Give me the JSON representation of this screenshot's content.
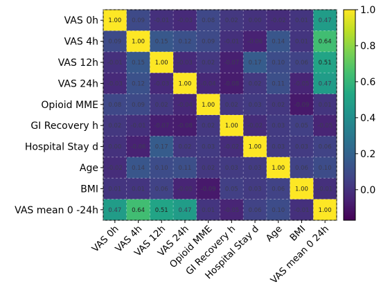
{
  "chart_data": {
    "type": "heatmap",
    "title": "",
    "xlabel": "",
    "ylabel": "",
    "row_labels": [
      "VAS  0h",
      "VAS  4h",
      "VAS  12h",
      "VAS  24h",
      "Opioid  MME",
      "GI Recovery  h",
      "Hospital Stay  d",
      "Age",
      "BMI",
      "VAS  mean  0 -24h"
    ],
    "col_labels": [
      "VAS  0h",
      "VAS  4h",
      "VAS  12h",
      "VAS  24h",
      "Opioid  MME",
      "GI  Recovery  h",
      "Hospital  Stay  d",
      "Age",
      "BMI",
      "VAS  mean  0  24h"
    ],
    "values": [
      [
        1.0,
        0.09,
        -0.01,
        -0.03,
        0.08,
        0.02,
        0.0,
        -0.02,
        0.01,
        0.47
      ],
      [
        0.09,
        1.0,
        0.15,
        0.12,
        0.09,
        -0.01,
        -0.06,
        0.14,
        0.01,
        0.64
      ],
      [
        -0.01,
        0.15,
        1.0,
        -0.03,
        0.02,
        -0.07,
        0.17,
        0.1,
        0.06,
        0.51
      ],
      [
        -0.03,
        0.12,
        -0.03,
        1.0,
        -0.04,
        -0.08,
        0.02,
        0.11,
        -0.05,
        0.47
      ],
      [
        0.08,
        0.09,
        0.02,
        -0.04,
        1.0,
        0.02,
        0.03,
        0.02,
        -0.09,
        0.01
      ],
      [
        0.02,
        -0.01,
        -0.07,
        -0.08,
        0.02,
        1.0,
        -0.02,
        0.03,
        0.05,
        -0.05
      ],
      [
        0.0,
        -0.06,
        0.17,
        0.02,
        0.03,
        -0.02,
        1.0,
        0.03,
        0.03,
        0.06
      ],
      [
        -0.02,
        0.14,
        0.1,
        0.11,
        0.02,
        0.03,
        0.03,
        1.0,
        0.06,
        0.1
      ],
      [
        0.01,
        0.01,
        0.06,
        -0.05,
        -0.09,
        0.05,
        0.03,
        0.06,
        1.0,
        -0.01
      ],
      [
        0.47,
        0.64,
        0.51,
        0.47,
        0.01,
        -0.05,
        0.06,
        0.1,
        -0.01,
        1.0
      ]
    ],
    "vmin": -0.17,
    "vmax": 1.0,
    "colormap": "viridis",
    "colorbar_ticks": [
      0.0,
      0.2,
      0.4,
      0.6,
      0.8,
      1.0
    ],
    "colorbar_labels": [
      "0.0",
      "0.2",
      "0.4",
      "0.6",
      "0.8",
      "1.0"
    ],
    "grid": true,
    "legend": "colorbar-right"
  }
}
